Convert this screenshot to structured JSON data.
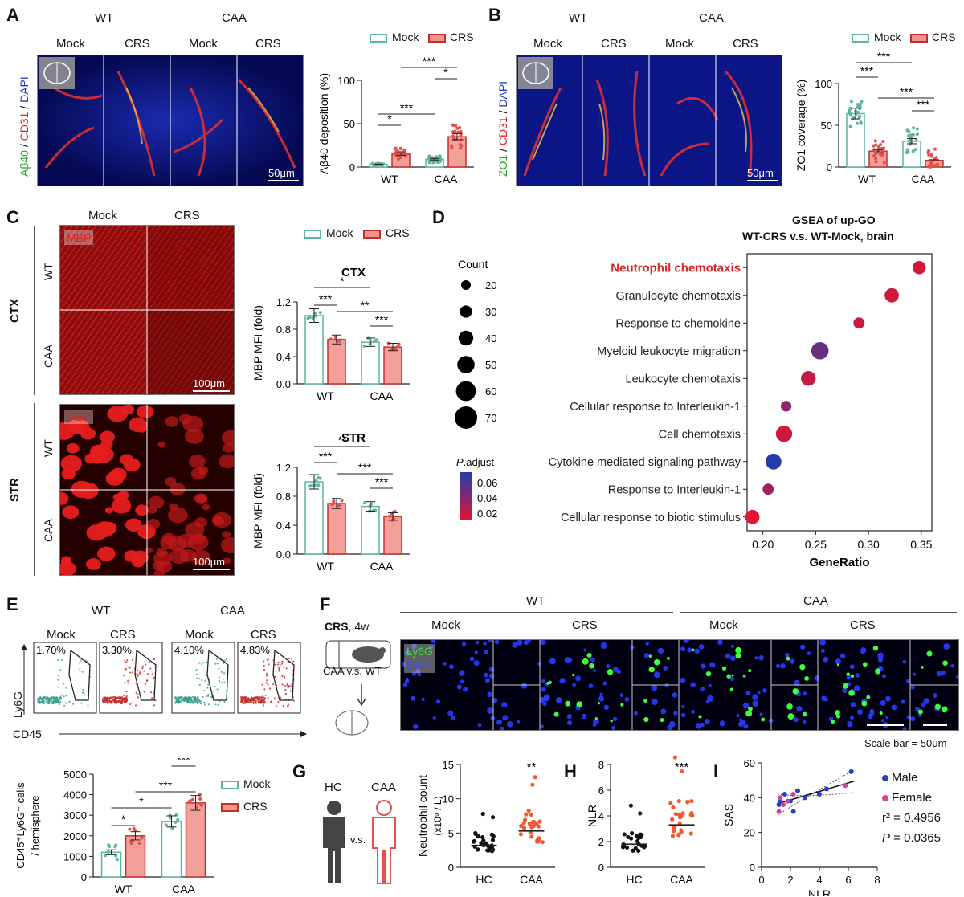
{
  "colors": {
    "mock": "#5fb3a0",
    "crs": "#e0504c",
    "label_red": "#d62728"
  },
  "legend": {
    "mock": "Mock",
    "crs": "CRS"
  },
  "groups": {
    "wt": "WT",
    "caa": "CAA",
    "mock": "Mock",
    "crs": "CRS",
    "hc": "HC"
  },
  "panelA": {
    "letter": "A",
    "channel_green": "Aβ40",
    "channel_red": "CD31",
    "channel_blue": "DAPI",
    "sep": " / ",
    "scalebar": "50μm",
    "chart_data": {
      "type": "bar",
      "ylabel": "Aβ40 deposition (%)",
      "categories": [
        "WT",
        "CAA"
      ],
      "ylim": [
        0,
        100
      ],
      "yticks": [
        "0",
        "50",
        "100"
      ],
      "series": [
        {
          "name": "Mock",
          "values": [
            3,
            9
          ]
        },
        {
          "name": "CRS",
          "values": [
            15,
            35
          ]
        }
      ],
      "significance": [
        "*",
        "*",
        "***",
        "***"
      ]
    }
  },
  "panelB": {
    "letter": "B",
    "channel_green": "ZO1",
    "channel_red": "CD31",
    "channel_blue": "DAPI",
    "scalebar": "50μm",
    "chart_data": {
      "type": "bar",
      "ylabel": "ZO1 coverage (%)",
      "categories": [
        "WT",
        "CAA"
      ],
      "ylim": [
        0,
        100
      ],
      "yticks": [
        "0",
        "50",
        "100"
      ],
      "series": [
        {
          "name": "Mock",
          "values": [
            64,
            31
          ]
        },
        {
          "name": "CRS",
          "values": [
            19,
            8
          ]
        }
      ],
      "significance": [
        "***",
        "***",
        "***",
        "***"
      ]
    }
  },
  "panelC": {
    "letter": "C",
    "stain": "MBP",
    "region_ctx": "CTX",
    "region_str": "STR",
    "scalebar": "100μm",
    "chart_data": [
      {
        "type": "bar",
        "title": "CTX",
        "ylabel": "MBP MFI (fold)",
        "categories": [
          "WT",
          "CAA"
        ],
        "ylim": [
          0,
          1.2
        ],
        "yticks": [
          "0.0",
          "0.4",
          "0.8",
          "1.2"
        ],
        "series": [
          {
            "name": "Mock",
            "values": [
              1.0,
              0.61
            ]
          },
          {
            "name": "CRS",
            "values": [
              0.65,
              0.54
            ]
          }
        ],
        "significance": [
          "***",
          "***",
          "**",
          "*"
        ]
      },
      {
        "type": "bar",
        "title": "STR",
        "ylabel": "MBP MFI (fold)",
        "categories": [
          "WT",
          "CAA"
        ],
        "ylim": [
          0,
          1.2
        ],
        "yticks": [
          "0.0",
          "0.4",
          "0.8",
          "1.2"
        ],
        "series": [
          {
            "name": "Mock",
            "values": [
              1.0,
              0.66
            ]
          },
          {
            "name": "CRS",
            "values": [
              0.7,
              0.52
            ]
          }
        ],
        "significance": [
          "***",
          "***",
          "***",
          "**"
        ]
      }
    ]
  },
  "panelD": {
    "letter": "D",
    "title1": "GSEA of up-GO",
    "title2": "WT-CRS v.s. WT-Mock, brain",
    "count_title": "Count",
    "count_levels": [
      "20",
      "30",
      "40",
      "50",
      "60",
      "70"
    ],
    "padj_title_italic": "P",
    "padj_title_rest": ".adjust",
    "padj_ticks": [
      "0.06",
      "0.04",
      "0.02"
    ],
    "chart_data": {
      "type": "scatter",
      "xlabel": "GeneRatio",
      "xlim": [
        0.185,
        0.36
      ],
      "xticks": [
        "0.20",
        "0.25",
        "0.30",
        "0.35"
      ],
      "terms": [
        "Neutrophil chemotaxis",
        "Granulocyte chemotaxis",
        "Response to chemokine",
        "Myeloid leukocyte migration",
        "Leukocyte chemotaxis",
        "Cellular response to Interleukin-1",
        "Cell chemotaxis",
        "Cytokine mediated signaling pathway",
        "Response to Interleukin-1",
        "Cellular response to biotic stimulus"
      ],
      "gene_ratio": [
        0.348,
        0.322,
        0.291,
        0.254,
        0.243,
        0.222,
        0.22,
        0.21,
        0.205,
        0.19
      ],
      "count": [
        34,
        38,
        26,
        50,
        40,
        24,
        46,
        44,
        26,
        38
      ],
      "padj": [
        0.012,
        0.014,
        0.015,
        0.048,
        0.018,
        0.035,
        0.016,
        0.068,
        0.03,
        0.008
      ]
    }
  },
  "panelE": {
    "letter": "E",
    "xaxis": "CD45",
    "yaxis": "Ly6G",
    "pct": [
      "1.70%",
      "3.30%",
      "4.10%",
      "4.83%"
    ],
    "chart_data": {
      "type": "bar",
      "ylabel1": "CD45⁺Ly6G⁺ cells",
      "ylabel2": "/ hemisphere",
      "categories": [
        "WT",
        "CAA"
      ],
      "ylim": [
        0,
        5000
      ],
      "yticks": [
        "0",
        "1000",
        "2000",
        "3000",
        "4000",
        "5000"
      ],
      "series": [
        {
          "name": "Mock",
          "values": [
            1200,
            2700
          ]
        },
        {
          "name": "CRS",
          "values": [
            2000,
            3600
          ]
        }
      ],
      "significance": [
        "*",
        "***",
        "***",
        "*"
      ]
    }
  },
  "panelF": {
    "letter": "F",
    "crs_bold": "CRS",
    "crs_rest": ", 4w",
    "caa_vs_wt": "CAA v.s. WT",
    "ch1": "Ly6G",
    "ch2": "DAPI",
    "scale": "Scale bar = 50μm"
  },
  "panelG": {
    "letter": "G",
    "vs": "v.s.",
    "ylabel": "Neutrophil count",
    "yunit": "(x10⁹ / L)",
    "chart_data": {
      "type": "scatter",
      "categories": [
        "HC",
        "CAA"
      ],
      "ylim": [
        0,
        15
      ],
      "yticks": [
        "0",
        "5",
        "10",
        "15"
      ],
      "means": [
        3.2,
        5.3
      ],
      "significance": "**"
    }
  },
  "panelH": {
    "letter": "H",
    "chart_data": {
      "type": "scatter",
      "ylabel": "NLR",
      "categories": [
        "HC",
        "CAA"
      ],
      "ylim": [
        0,
        8
      ],
      "yticks": [
        "0",
        "2",
        "4",
        "6",
        "8"
      ],
      "means": [
        1.8,
        3.3
      ],
      "significance": "***"
    }
  },
  "panelI": {
    "letter": "I",
    "male": "Male",
    "female": "Female",
    "r2": "r² = 0.4956",
    "p_italic": "P",
    "p_rest": " = 0.0365",
    "chart_data": {
      "type": "scatter",
      "xlabel": "NLR",
      "ylabel": "SAS",
      "xlim": [
        0,
        8
      ],
      "ylim": [
        0,
        60
      ],
      "xticks": [
        "0",
        "2",
        "4",
        "6",
        "8"
      ],
      "yticks": [
        "0",
        "20",
        "40",
        "60"
      ],
      "male": [
        [
          1.3,
          38
        ],
        [
          1.6,
          42
        ],
        [
          2.0,
          38
        ],
        [
          2.5,
          44
        ],
        [
          3.0,
          40
        ],
        [
          4.0,
          42
        ],
        [
          6.2,
          55
        ],
        [
          1.2,
          36
        ],
        [
          2.2,
          32
        ],
        [
          4.5,
          45
        ]
      ],
      "female": [
        [
          1.3,
          40
        ],
        [
          1.5,
          36
        ],
        [
          1.8,
          38
        ],
        [
          2.2,
          42
        ],
        [
          5.8,
          47
        ],
        [
          1.2,
          32
        ]
      ]
    }
  }
}
